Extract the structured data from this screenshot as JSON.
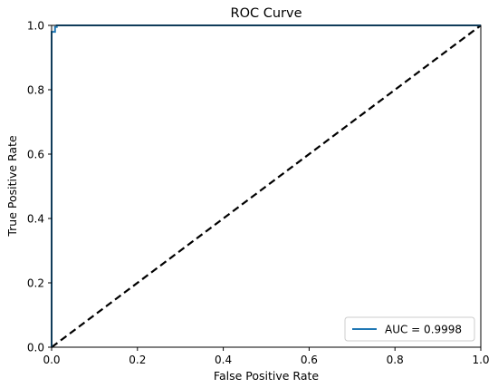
{
  "chart_data": {
    "type": "line",
    "title": "ROC Curve",
    "xlabel": "False Positive Rate",
    "ylabel": "True Positive Rate",
    "xlim": [
      0.0,
      1.0
    ],
    "ylim": [
      0.0,
      1.0
    ],
    "x_ticks": [
      "0.0",
      "0.2",
      "0.4",
      "0.6",
      "0.8",
      "1.0"
    ],
    "y_ticks": [
      "0.0",
      "0.2",
      "0.4",
      "0.6",
      "0.8",
      "1.0"
    ],
    "grid": false,
    "legend_position": "lower right",
    "series": [
      {
        "name": "AUC = 0.9998",
        "color": "#1f77b4",
        "style": "solid",
        "x": [
          0.0,
          0.0,
          0.0,
          0.008,
          0.008,
          0.012,
          0.012,
          1.0
        ],
        "y": [
          0.0,
          0.975,
          0.98,
          0.98,
          0.995,
          0.995,
          1.0,
          1.0
        ]
      },
      {
        "name": "",
        "color": "#000000",
        "style": "dashed",
        "x": [
          0.0,
          1.0
        ],
        "y": [
          0.0,
          1.0
        ]
      }
    ]
  }
}
